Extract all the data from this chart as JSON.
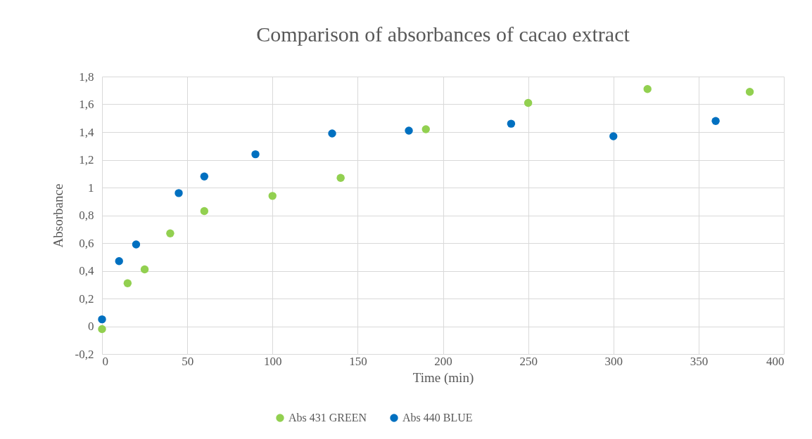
{
  "chart_data": {
    "type": "scatter",
    "title": "Comparison of absorbances of cacao extract",
    "xlabel": "Time (min)",
    "ylabel": "Absorbance",
    "series": [
      {
        "name": "Abs 431 GREEN",
        "color": "#92d050",
        "x": [
          0,
          15,
          25,
          40,
          60,
          100,
          140,
          190,
          250,
          320,
          380
        ],
        "values": [
          -0.02,
          0.31,
          0.41,
          0.67,
          0.83,
          0.94,
          1.07,
          1.42,
          1.61,
          1.71,
          1.69
        ]
      },
      {
        "name": "Abs 440 BLUE",
        "color": "#0070c0",
        "x": [
          0,
          10,
          20,
          45,
          60,
          90,
          135,
          180,
          240,
          300,
          360
        ],
        "values": [
          0.05,
          0.47,
          0.59,
          0.96,
          1.08,
          1.24,
          1.39,
          1.41,
          1.46,
          1.37,
          1.48
        ]
      }
    ],
    "xlim": [
      0,
      400
    ],
    "xticks": [
      0,
      50,
      100,
      150,
      200,
      250,
      300,
      350,
      400
    ],
    "ylim": [
      -0.2,
      1.8
    ],
    "yticks": [
      {
        "value": -0.2,
        "label": "-0,2"
      },
      0,
      {
        "value": 0.2,
        "label": "0,2"
      },
      {
        "value": 0.4,
        "label": "0,4"
      },
      {
        "value": 0.6,
        "label": "0,6"
      },
      {
        "value": 0.8,
        "label": "0,8"
      },
      1,
      {
        "value": 1.2,
        "label": "1,2"
      },
      {
        "value": 1.4,
        "label": "1,4"
      },
      {
        "value": 1.6,
        "label": "1,6"
      },
      {
        "value": 1.8,
        "label": "1,8"
      }
    ],
    "grid": true,
    "legend": "bottom",
    "marker": "circle"
  }
}
